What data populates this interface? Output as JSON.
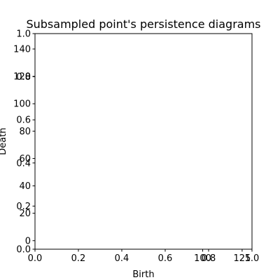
{
  "chart_data": {
    "type": "scatter",
    "title": "Subsampled point's persistence diagrams",
    "xlabel": "Birth",
    "ylabel": "Death",
    "grid": false,
    "series": [],
    "axes_primary": {
      "xlim": [
        0.0,
        1.0
      ],
      "ylim": [
        0.0,
        1.0
      ],
      "xticks": [
        "0.0",
        "0.2",
        "0.4",
        "0.6",
        "0.8",
        "1.0"
      ],
      "yticks": [
        "0.0",
        "0.2",
        "0.4",
        "0.6",
        "0.8",
        "1.0"
      ]
    },
    "axes_overlay": {
      "xlim": [
        -6.25,
        131.25
      ],
      "ylim": [
        -6.25,
        151.25
      ],
      "xticks": [
        {
          "value": 100,
          "label": "100"
        },
        {
          "value": 125,
          "label": "125"
        }
      ],
      "yticks": [
        {
          "value": 0,
          "label": "0"
        },
        {
          "value": 20,
          "label": "20"
        },
        {
          "value": 40,
          "label": "40"
        },
        {
          "value": 60,
          "label": "60"
        },
        {
          "value": 80,
          "label": "80"
        },
        {
          "value": 100,
          "label": "100"
        },
        {
          "value": 120,
          "label": "120"
        },
        {
          "value": 140,
          "label": "140"
        }
      ]
    }
  }
}
